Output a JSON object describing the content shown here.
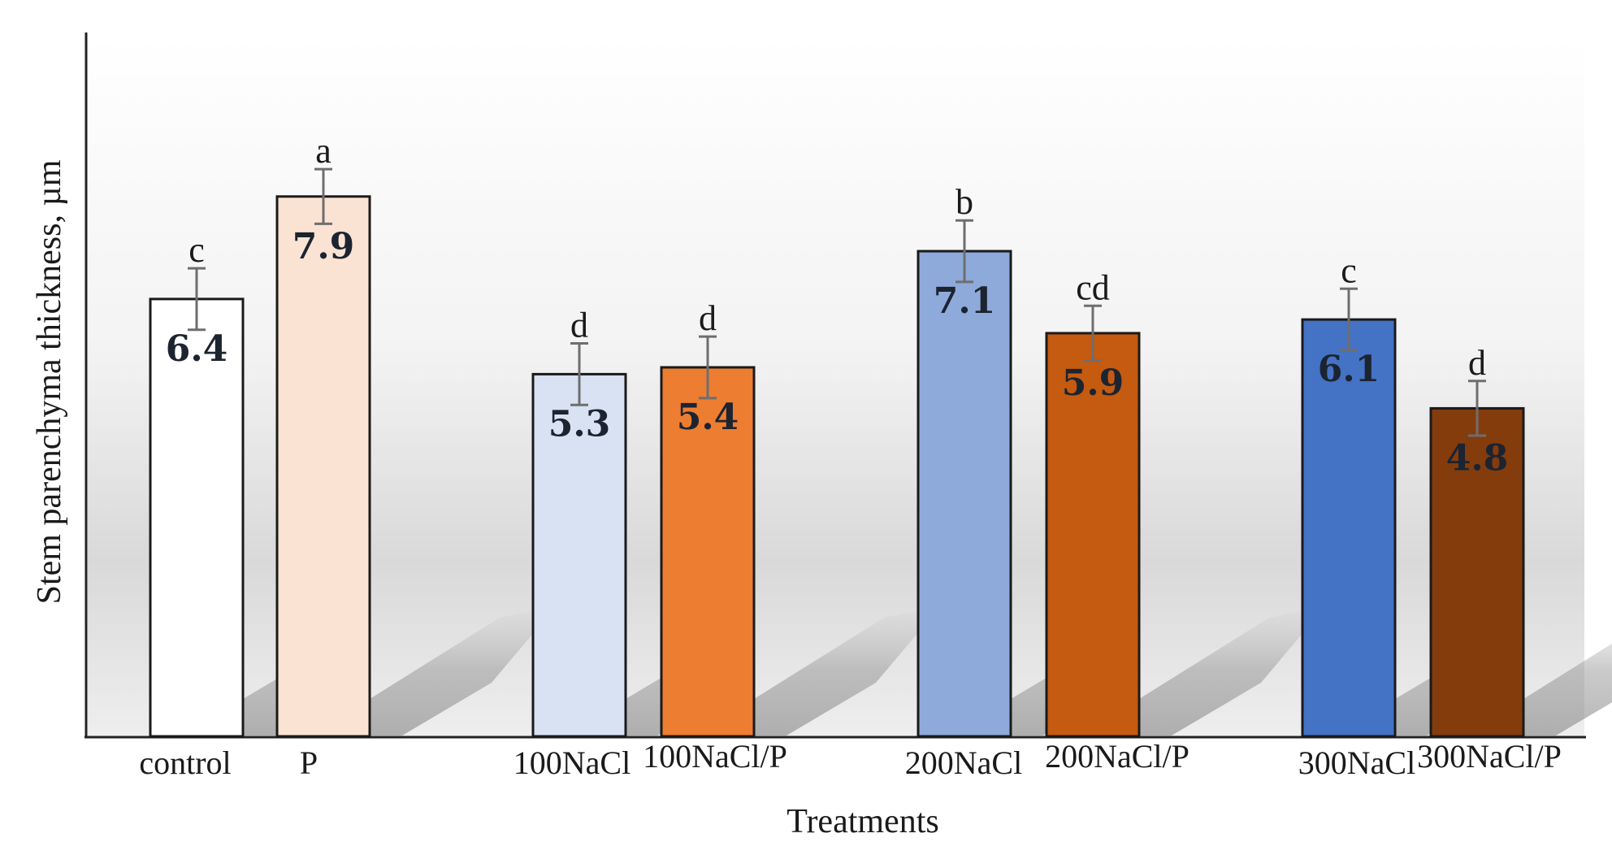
{
  "chart_data": {
    "type": "bar",
    "title": "",
    "xlabel": "Treatments",
    "ylabel": "Stem parenchyma thickness, µm",
    "ylim": [
      0,
      10.3
    ],
    "grid": false,
    "legend": "none",
    "categories": [
      "control",
      "P",
      "100NaCl",
      "100NaCl/P",
      "200NaCl",
      "200NaCl/P",
      "300NaCl",
      "300NaCl/P"
    ],
    "values": [
      6.4,
      7.9,
      5.3,
      5.4,
      7.1,
      5.9,
      6.1,
      4.8
    ],
    "value_labels": [
      "6.4",
      "7.9",
      "5.3",
      "5.4",
      "7.1",
      "5.9",
      "6.1",
      "4.8"
    ],
    "error": [
      0.45,
      0.4,
      0.45,
      0.45,
      0.45,
      0.4,
      0.45,
      0.4
    ],
    "significance": [
      "c",
      "a",
      "d",
      "d",
      "b",
      "cd",
      "c",
      "d"
    ],
    "groups": [
      [
        0,
        1
      ],
      [
        2,
        3
      ],
      [
        4,
        5
      ],
      [
        6,
        7
      ]
    ],
    "colors": [
      "#ffffff",
      "#fbe3d3",
      "#d9e2f3",
      "#ed7d31",
      "#8eaadb",
      "#c55a11",
      "#4472c4",
      "#843c0c"
    ]
  }
}
